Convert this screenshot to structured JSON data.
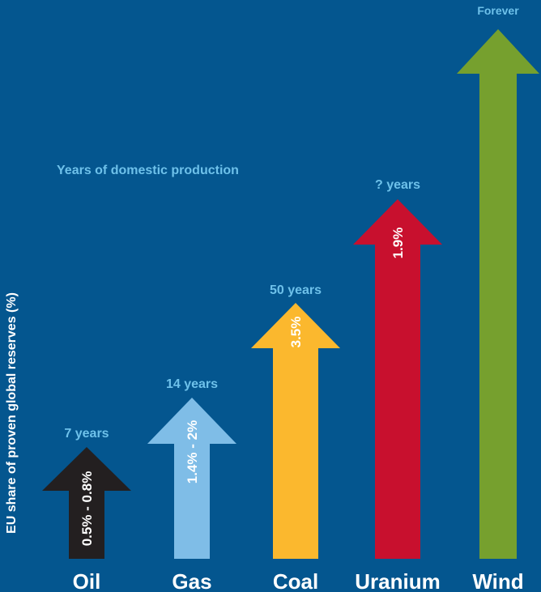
{
  "chart_data": {
    "type": "bar",
    "title": "",
    "subtitle": "Years of domestic production",
    "ylabel": "EU share of proven global reserves (%)",
    "xlabel": "",
    "categories": [
      "Oil",
      "Gas",
      "Coal",
      "Uranium",
      "Wind"
    ],
    "share_labels": [
      "0.5% - 0.8%",
      "1.4% - 2%",
      "3.5%",
      "1.9%",
      ""
    ],
    "years": [
      7,
      14,
      50,
      null,
      null
    ],
    "top_labels": [
      "7 years",
      "14 years",
      "50 years",
      "? years",
      "Forever"
    ],
    "colors": {
      "background": "#04568f",
      "oil": "#231f20",
      "gas": "#7fbde7",
      "coal": "#fbb82e",
      "uranium": "#c8102e",
      "wind": "#76a02e",
      "year_label": "#6ec1ea",
      "category_label": "#ffffff"
    }
  }
}
